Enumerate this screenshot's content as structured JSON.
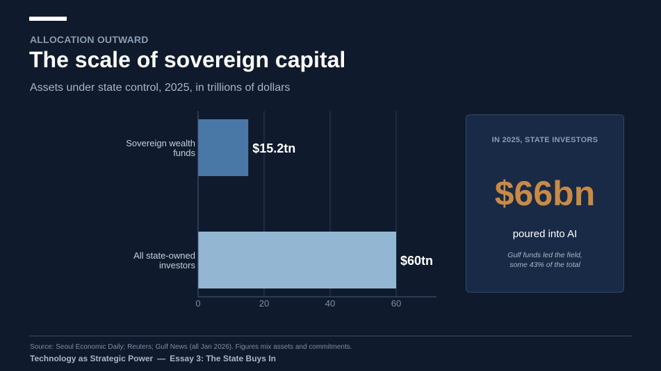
{
  "header": {
    "kicker": "ALLOCATION OUTWARD",
    "title": "The scale of sovereign capital",
    "subtitle": "Assets under state control, 2025, in trillions of dollars"
  },
  "chart_data": {
    "type": "bar",
    "orientation": "horizontal",
    "categories": [
      "Sovereign wealth funds",
      "All state-owned investors"
    ],
    "category_lines": [
      [
        "Sovereign wealth",
        "funds"
      ],
      [
        "All state-owned",
        "investors"
      ]
    ],
    "values": [
      15.2,
      60
    ],
    "data_labels": [
      "$15.2tn",
      "$60tn"
    ],
    "bar_colors": [
      "#4a78a6",
      "#93b7d3"
    ],
    "xlim": [
      0,
      60
    ],
    "xticks": [
      0,
      20,
      40,
      60
    ],
    "grid": true
  },
  "callout": {
    "kicker": "IN 2025, STATE INVESTORS",
    "big_number": "$66bn",
    "caption": "poured into AI",
    "note_line1": "Gulf funds led the field,",
    "note_line2": "some 43% of the total",
    "number_color": "#c98a45"
  },
  "footer": {
    "source": "Source: Seoul Economic Daily; Reuters; Gulf News (all Jan 2026). Figures mix assets and commitments.",
    "series_title": "Technology as Strategic Power",
    "separator": "—",
    "essay": "Essay 3: The State Buys In"
  }
}
